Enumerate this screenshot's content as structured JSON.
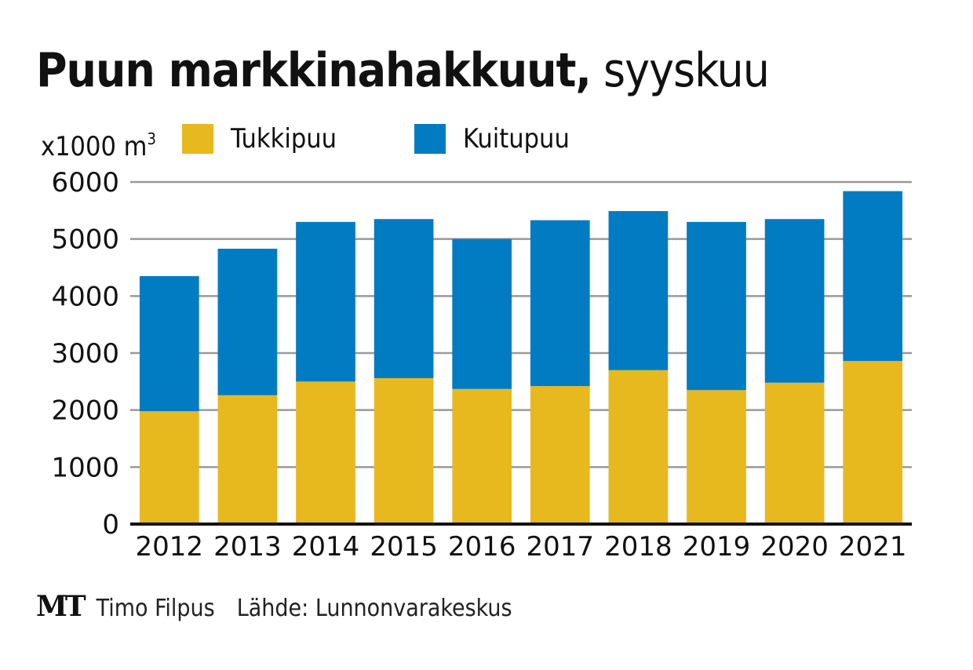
{
  "title": {
    "bold": "Puun markkinahakkuut",
    "separator": ",",
    "rest": " syyskuu"
  },
  "footer": {
    "logo": "MT",
    "author": "Timo Filpus",
    "source": "Lähde: Lunnonvarakeskus"
  },
  "colors": {
    "tukkipuu": "#e8b81f",
    "kuitupuu": "#017bc1",
    "grid": "#999999",
    "axis": "#111111"
  },
  "chart_data": {
    "type": "bar",
    "stacked": true,
    "title": "Puun markkinahakkuut, syyskuu",
    "unit_label": "x1000 m",
    "unit_sup": "3",
    "xlabel": "",
    "ylabel": "x1000 m3",
    "ylim": [
      0,
      6000
    ],
    "yticks": [
      "0",
      "1000",
      "2000",
      "3000",
      "4000",
      "5000",
      "6000"
    ],
    "grid": true,
    "legend_position": "top",
    "categories": [
      "2012",
      "2013",
      "2014",
      "2015",
      "2016",
      "2017",
      "2018",
      "2019",
      "2020",
      "2021"
    ],
    "series": [
      {
        "name": "Tukkipuu",
        "color": "#e8b81f",
        "values": [
          1980,
          2260,
          2500,
          2560,
          2370,
          2420,
          2700,
          2350,
          2480,
          2860
        ]
      },
      {
        "name": "Kuitupuu",
        "color": "#017bc1",
        "values": [
          2370,
          2570,
          2800,
          2790,
          2630,
          2910,
          2790,
          2950,
          2870,
          2980
        ]
      }
    ]
  }
}
